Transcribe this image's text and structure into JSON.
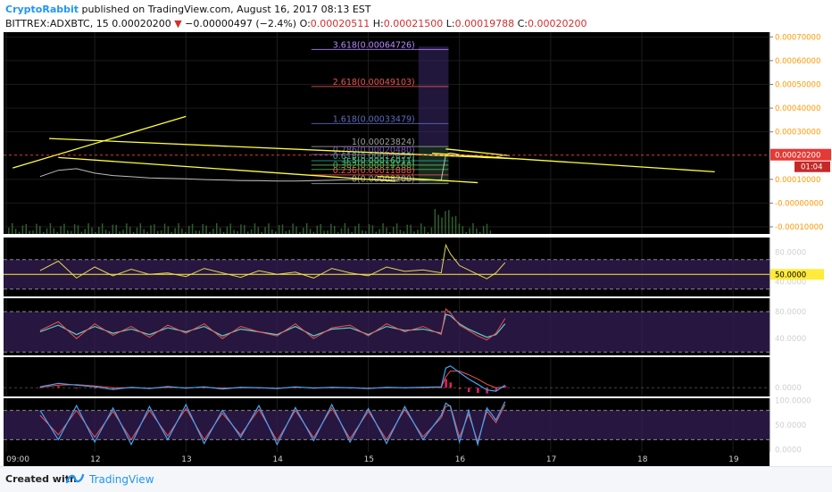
{
  "header": {
    "author": "CryptoRabbit",
    "published_text": "published on TradingView.com, August 16, 2017 08:13 EST",
    "symbol": "BITTREX:ADXBTC, 15",
    "last": "0.00020200",
    "change_arrow": "▼",
    "change": "−0.00000497 (−2.4%)",
    "o_label": "O:",
    "o_value": "0.00020511",
    "h_label": "H:",
    "h_value": "0.00021500",
    "l_label": "L:",
    "l_value": "0.00019788",
    "c_label": "C:",
    "c_value": "0.00020200"
  },
  "footer": {
    "created_with": "Created with",
    "brand": "TradingView"
  },
  "colors": {
    "bg": "#000000",
    "price": "#bdbdbd",
    "trend": "#ffff3b",
    "last_line": "#e53935",
    "rsi": "#e3d94b",
    "osc_fast": "#ef5350",
    "osc_slow": "#5bd0c4",
    "macd": "#42a5f5",
    "hist": "#e91e63",
    "stoch_k": "#42a5f5",
    "stoch_d": "#ef5350",
    "band": "#341e55",
    "fib_ext": "#3a2a6b"
  },
  "chart_data": [
    {
      "type": "line",
      "pane": "price",
      "y_ticks": [
        "0.00070000",
        "0.00060000",
        "0.00050000",
        "0.00040000",
        "0.00030000",
        "0.00010000",
        "-0.00000000",
        "-0.00010000"
      ],
      "last_price_label": "0.00020200",
      "countdown": "01:04",
      "x_ticks": [
        "09:00",
        "12",
        "13",
        "14",
        "15",
        "16",
        "17",
        "18",
        "19"
      ],
      "x": [
        11.4,
        11.6,
        11.8,
        12.0,
        12.2,
        12.4,
        12.6,
        12.8,
        13.0,
        13.2,
        13.4,
        13.6,
        13.8,
        14.0,
        14.2,
        14.4,
        14.6,
        14.8,
        15.0,
        15.2,
        15.4,
        15.6,
        15.8,
        15.85,
        15.9,
        16.0,
        16.1,
        16.2,
        16.3,
        16.4,
        16.5
      ],
      "y": [
        0.000112,
        0.000138,
        0.000145,
        0.000126,
        0.000116,
        0.000111,
        0.000106,
        0.000104,
        0.000102,
        9.9e-05,
        9.7e-05,
        9.5e-05,
        9.4e-05,
        9.3e-05,
        9.3e-05,
        9.4e-05,
        9.6e-05,
        9.9e-05,
        0.000101,
        9.9e-05,
        9.7e-05,
        9.6e-05,
        9.8e-05,
        0.000205,
        0.000212,
        0.000204,
        0.000197,
        0.000195,
        0.000191,
        0.000194,
        0.000202
      ],
      "ylim": [
        -0.00013,
        0.00072
      ],
      "fib_levels": [
        {
          "ratio": "3.618",
          "price": "0.00064726",
          "value": 0.00064726,
          "color": "#b388ff"
        },
        {
          "ratio": "2.618",
          "price": "0.00049103",
          "value": 0.00049103,
          "color": "#ef5350"
        },
        {
          "ratio": "1.618",
          "price": "0.00033479",
          "value": 0.00033479,
          "color": "#5c6bc0"
        },
        {
          "ratio": "1",
          "price": "0.00023824",
          "value": 0.00023824,
          "color": "#9e9e9e"
        },
        {
          "ratio": "0.786",
          "price": "0.00020480",
          "value": 0.0002048,
          "color": "#7e57c2"
        },
        {
          "ratio": "0.618",
          "price": "0.00017855",
          "value": 0.00017855,
          "color": "#26a69a"
        },
        {
          "ratio": "0.5",
          "price": "0.00016011",
          "value": 0.00016011,
          "color": "#66bb6a"
        },
        {
          "ratio": "0.382",
          "price": "0.00014168",
          "value": 0.00014168,
          "color": "#4caf50"
        },
        {
          "ratio": "0.236",
          "price": "0.00011888",
          "value": 0.00011888,
          "color": "#ef5350"
        },
        {
          "ratio": "0",
          "price": "0.00008200",
          "value": 8.2e-05,
          "color": "#9e9e9e"
        }
      ],
      "trendlines": [
        {
          "x": [
            11.5,
            16.6
          ],
          "y": [
            0.000272,
            0.000187
          ]
        },
        {
          "x": [
            11.6,
            15.3
          ],
          "y": [
            0.000192,
            9.2e-05
          ]
        },
        {
          "x": [
            15.85,
            16.55
          ],
          "y": [
            0.000228,
            0.0002
          ]
        },
        {
          "x": [
            15.7,
            18.8
          ],
          "y": [
            0.00021,
            0.000132
          ]
        },
        {
          "x": [
            11.1,
            13.0
          ],
          "y": [
            0.000148,
            0.000365
          ]
        },
        {
          "x": [
            15.1,
            16.2
          ],
          "y": [
            0.000112,
            8.6e-05
          ]
        }
      ]
    },
    {
      "type": "line",
      "pane": "rsi",
      "y_ticks": [
        "80.0000",
        "40.0000"
      ],
      "value_label": "50.0000",
      "x": [
        11.4,
        11.6,
        11.8,
        12.0,
        12.2,
        12.4,
        12.6,
        12.8,
        13.0,
        13.2,
        13.4,
        13.6,
        13.8,
        14.0,
        14.2,
        14.4,
        14.6,
        14.8,
        15.0,
        15.2,
        15.4,
        15.6,
        15.8,
        15.85,
        15.9,
        16.0,
        16.1,
        16.2,
        16.3,
        16.4,
        16.5
      ],
      "y": [
        55,
        68,
        45,
        60,
        48,
        57,
        50,
        52,
        47,
        58,
        52,
        46,
        55,
        50,
        53,
        45,
        58,
        52,
        48,
        60,
        54,
        56,
        52,
        90,
        78,
        62,
        56,
        50,
        44,
        52,
        66
      ],
      "ylim": [
        20,
        100
      ],
      "band": [
        30,
        70
      ],
      "reference": 50
    },
    {
      "type": "line",
      "pane": "stoch_rsi",
      "y_ticks": [
        "80.0000",
        "40.0000"
      ],
      "x": [
        11.4,
        11.6,
        11.8,
        12.0,
        12.2,
        12.4,
        12.6,
        12.8,
        13.0,
        13.2,
        13.4,
        13.6,
        13.8,
        14.0,
        14.2,
        14.4,
        14.6,
        14.8,
        15.0,
        15.2,
        15.4,
        15.6,
        15.8,
        15.85,
        15.9,
        16.0,
        16.1,
        16.2,
        16.3,
        16.4,
        16.5
      ],
      "series": [
        {
          "values": [
            52,
            65,
            40,
            62,
            45,
            58,
            42,
            60,
            48,
            62,
            40,
            58,
            50,
            44,
            62,
            40,
            56,
            60,
            44,
            62,
            50,
            58,
            46,
            84,
            78,
            60,
            52,
            44,
            38,
            48,
            70
          ]
        },
        {
          "values": [
            50,
            60,
            46,
            58,
            48,
            54,
            46,
            56,
            50,
            58,
            44,
            54,
            50,
            46,
            58,
            44,
            54,
            56,
            46,
            58,
            52,
            54,
            48,
            76,
            74,
            62,
            54,
            48,
            42,
            46,
            62
          ]
        }
      ],
      "ylim": [
        15,
        100
      ],
      "band": [
        20,
        80
      ]
    },
    {
      "type": "line",
      "pane": "macd",
      "y_ticks": [
        "0.0000"
      ],
      "x": [
        11.4,
        11.6,
        11.8,
        12.0,
        12.2,
        12.4,
        12.6,
        12.8,
        13.0,
        13.2,
        13.4,
        13.6,
        13.8,
        14.0,
        14.2,
        14.4,
        14.6,
        14.8,
        15.0,
        15.2,
        15.4,
        15.6,
        15.8,
        15.85,
        15.9,
        16.0,
        16.1,
        16.2,
        16.3,
        16.4,
        16.5
      ],
      "series": [
        {
          "values": [
            0.2,
            1.0,
            0.6,
            0.2,
            -0.4,
            0.1,
            -0.2,
            0.3,
            -0.1,
            0.2,
            -0.3,
            0.1,
            0.0,
            -0.2,
            0.2,
            -0.1,
            0.1,
            0.0,
            -0.2,
            0.1,
            0.0,
            0.1,
            0.2,
            4.5,
            5.0,
            3.5,
            2.0,
            0.8,
            -0.5,
            -0.8,
            0.6
          ]
        },
        {
          "values": [
            0.1,
            0.6,
            0.7,
            0.4,
            0.0,
            0.0,
            -0.1,
            0.1,
            0.0,
            0.1,
            -0.1,
            0.0,
            0.0,
            -0.1,
            0.1,
            0.0,
            0.0,
            0.0,
            -0.1,
            0.0,
            0.0,
            0.0,
            0.1,
            2.5,
            3.8,
            3.8,
            3.0,
            2.0,
            0.8,
            0.0,
            0.2
          ]
        }
      ],
      "ylim": [
        -2,
        7
      ]
    },
    {
      "type": "line",
      "pane": "stochastic",
      "y_ticks": [
        "100.0000",
        "50.0000",
        "0.0000"
      ],
      "x": [
        11.4,
        11.6,
        11.8,
        12.0,
        12.2,
        12.4,
        12.6,
        12.8,
        13.0,
        13.2,
        13.4,
        13.6,
        13.8,
        14.0,
        14.2,
        14.4,
        14.6,
        14.8,
        15.0,
        15.2,
        15.4,
        15.6,
        15.8,
        15.85,
        15.9,
        16.0,
        16.1,
        16.2,
        16.3,
        16.4,
        16.5
      ],
      "series": [
        {
          "values": [
            80,
            20,
            90,
            15,
            85,
            10,
            88,
            20,
            92,
            12,
            80,
            25,
            90,
            10,
            86,
            18,
            92,
            15,
            84,
            12,
            88,
            20,
            70,
            95,
            88,
            15,
            80,
            10,
            85,
            60,
            98
          ]
        },
        {
          "values": [
            70,
            30,
            80,
            25,
            78,
            20,
            80,
            28,
            84,
            20,
            74,
            30,
            82,
            18,
            80,
            24,
            85,
            22,
            78,
            20,
            82,
            26,
            65,
            88,
            90,
            25,
            72,
            16,
            78,
            55,
            92
          ]
        }
      ],
      "ylim": [
        -5,
        105
      ],
      "band": [
        20,
        80
      ]
    }
  ]
}
